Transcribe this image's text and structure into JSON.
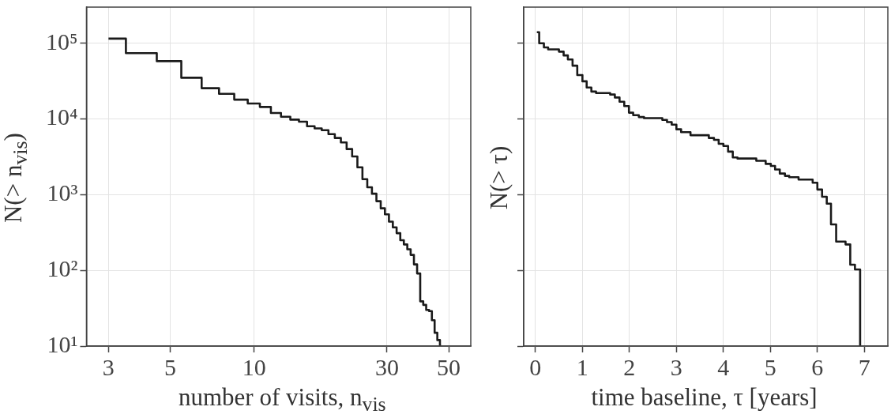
{
  "chart_data": [
    {
      "type": "step",
      "xlabel": "number of visits, n$_{vis}$",
      "ylabel": "N(> n$_{vis}$)",
      "log": "xy",
      "grid": true,
      "x": [
        3,
        4,
        5,
        6,
        7,
        8,
        9,
        10,
        11,
        12,
        13,
        14,
        15,
        16,
        17,
        18,
        19,
        20,
        21,
        22,
        23,
        24,
        25,
        26,
        27,
        28,
        29,
        30,
        31,
        32,
        33,
        34,
        35,
        36,
        37,
        38,
        39,
        40,
        41,
        42,
        43,
        44,
        45,
        46,
        47
      ],
      "series": [
        {
          "color": "#1a1a1a",
          "values": [
            115000,
            74000,
            58000,
            35000,
            25500,
            21500,
            18000,
            16000,
            14400,
            12000,
            10700,
            9800,
            9200,
            8000,
            7500,
            7100,
            6300,
            5600,
            4900,
            4000,
            3200,
            2300,
            1600,
            1250,
            1030,
            820,
            660,
            550,
            440,
            370,
            310,
            250,
            220,
            190,
            160,
            120,
            91,
            39,
            35,
            30,
            29,
            22,
            15,
            12,
            10
          ]
        }
      ],
      "xlim": [
        2.5,
        60
      ],
      "xticks": [
        3,
        5,
        10,
        30,
        50
      ],
      "ylim": [
        10,
        300000
      ],
      "yticks": [
        {
          "value": 10,
          "label": "10¹"
        },
        {
          "value": 100,
          "label": "10²"
        },
        {
          "value": 1000,
          "label": "10³"
        },
        {
          "value": 10000,
          "label": "10⁴"
        },
        {
          "value": 100000,
          "label": "10⁵"
        }
      ]
    },
    {
      "type": "step",
      "xlabel": "time baseline, τ [years]",
      "ylabel": "N(> τ)",
      "log": "y",
      "grid": true,
      "tick_labels": "x",
      "x": [
        0.03,
        0.08,
        0.18,
        0.27,
        0.5,
        0.6,
        0.69,
        0.79,
        0.89,
        1.0,
        1.09,
        1.19,
        1.29,
        1.59,
        1.69,
        1.79,
        1.89,
        1.99,
        2.08,
        2.2,
        2.31,
        2.7,
        2.8,
        2.9,
        3.0,
        3.1,
        3.3,
        3.69,
        3.8,
        3.9,
        4.0,
        4.1,
        4.2,
        4.3,
        4.7,
        4.9,
        5.01,
        5.1,
        5.2,
        5.31,
        5.4,
        5.6,
        5.9,
        6.0,
        6.1,
        6.2,
        6.29,
        6.4,
        6.6,
        6.7,
        6.8,
        6.91
      ],
      "series": [
        {
          "color": "#1a1a1a",
          "values": [
            140000,
            100000,
            88000,
            83000,
            77500,
            69000,
            61000,
            50500,
            38000,
            31400,
            26000,
            23000,
            22000,
            21000,
            19200,
            16900,
            14800,
            12100,
            11200,
            10600,
            10250,
            9700,
            9100,
            8400,
            7300,
            6700,
            6100,
            5600,
            5300,
            4700,
            4400,
            3700,
            3100,
            3000,
            2800,
            2550,
            2400,
            2150,
            1900,
            1770,
            1700,
            1580,
            1440,
            1170,
            940,
            760,
            405,
            240,
            220,
            119,
            103,
            10
          ]
        }
      ],
      "xlim": [
        -0.25,
        7.5
      ],
      "xticks": [
        0,
        1,
        2,
        3,
        4,
        5,
        6,
        7
      ],
      "ylim": [
        10,
        300000
      ],
      "yticks": [
        {
          "value": 10,
          "label": null
        },
        {
          "value": 100,
          "label": null
        },
        {
          "value": 1000,
          "label": null
        },
        {
          "value": 10000,
          "label": null
        },
        {
          "value": 100000,
          "label": null
        }
      ]
    }
  ]
}
